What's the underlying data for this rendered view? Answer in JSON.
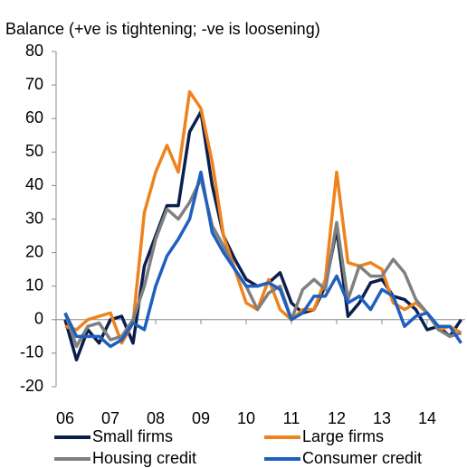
{
  "chart_data": {
    "type": "line",
    "y_axis_label": "Balance (+ve is tightening; -ve is loosening)",
    "x": [
      2006,
      2006.25,
      2006.5,
      2006.75,
      2007,
      2007.25,
      2007.5,
      2007.75,
      2008,
      2008.25,
      2008.5,
      2008.75,
      2009,
      2009.25,
      2009.5,
      2009.75,
      2010,
      2010.25,
      2010.5,
      2010.75,
      2011,
      2011.25,
      2011.5,
      2011.75,
      2012,
      2012.25,
      2012.5,
      2012.75,
      2013,
      2013.25,
      2013.5,
      2013.75,
      2014,
      2014.25,
      2014.5,
      2014.75
    ],
    "series": [
      {
        "name": "Small firms",
        "color": "#0b1f4f",
        "values": [
          0,
          -12,
          -3,
          -7,
          0,
          1,
          -7,
          16,
          25,
          34,
          34,
          56,
          62,
          40,
          25,
          18,
          12,
          10,
          11,
          14,
          5,
          2,
          3,
          10,
          27,
          1,
          5,
          11,
          12,
          7,
          6,
          3,
          -3,
          -2,
          -5,
          0
        ]
      },
      {
        "name": "Large firms",
        "color": "#f0821e",
        "values": [
          -2,
          -3,
          0,
          1,
          2,
          -7,
          -1,
          32,
          44,
          52,
          44,
          68,
          63,
          47,
          25,
          15,
          5,
          3,
          12,
          3,
          0,
          3,
          3,
          12,
          44,
          17,
          16,
          17,
          15,
          5,
          3,
          5,
          2,
          -3,
          -2,
          -4
        ]
      },
      {
        "name": "Housing credit",
        "color": "#808080",
        "values": [
          2,
          -8,
          -2,
          -1,
          -6,
          -5,
          0,
          10,
          24,
          33,
          30,
          35,
          42,
          28,
          22,
          15,
          10,
          3,
          8,
          10,
          0,
          9,
          12,
          9,
          29,
          6,
          16,
          13,
          13,
          18,
          14,
          6,
          2,
          -3,
          -5,
          -4
        ]
      },
      {
        "name": "Consumer credit",
        "color": "#1f5fbf",
        "values": [
          2,
          -5,
          -5,
          -5,
          -8,
          -6,
          -1,
          -3,
          10,
          19,
          24,
          30,
          44,
          26,
          20,
          15,
          10,
          10,
          11,
          9,
          0,
          2,
          7,
          7,
          13,
          5,
          7,
          3,
          9,
          7,
          -2,
          1,
          2,
          -2,
          -2,
          -7
        ]
      }
    ],
    "xlim": [
      2005.8,
      2014.84
    ],
    "xticks": [
      {
        "value": 2006,
        "label": "06"
      },
      {
        "value": 2007,
        "label": "07"
      },
      {
        "value": 2008,
        "label": "08"
      },
      {
        "value": 2009,
        "label": "09"
      },
      {
        "value": 2010,
        "label": "10"
      },
      {
        "value": 2011,
        "label": "11"
      },
      {
        "value": 2012,
        "label": "12"
      },
      {
        "value": 2013,
        "label": "13"
      },
      {
        "value": 2014,
        "label": "14"
      }
    ],
    "ylim": [
      -20,
      80
    ],
    "yticks": [
      -20,
      -10,
      0,
      10,
      20,
      30,
      40,
      50,
      60,
      70,
      80
    ]
  }
}
